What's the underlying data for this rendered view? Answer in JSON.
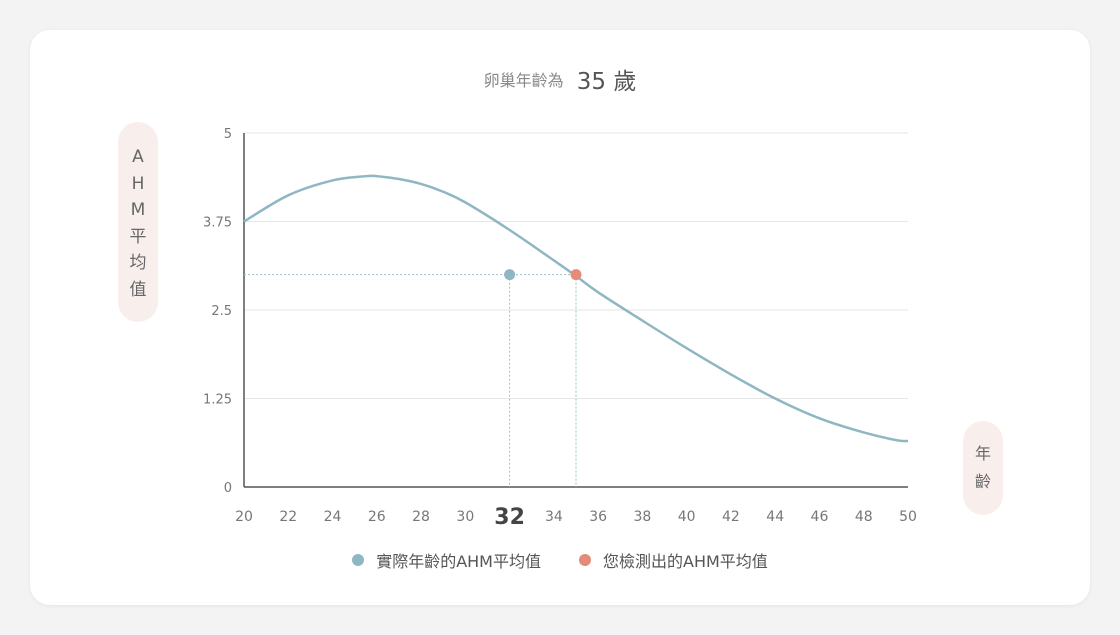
{
  "header": {
    "label": "卵巢年齡為",
    "value": "35 歲"
  },
  "axis_pills": {
    "y_chars": [
      "A",
      "H",
      "M",
      "平",
      "均",
      "值"
    ],
    "x_chars": [
      "年",
      "齡"
    ]
  },
  "legend": {
    "actual": "實際年齡的AHM平均值",
    "measured": "您檢測出的AHM平均值"
  },
  "colors": {
    "curve": "#8fb7c3",
    "actual_dot": "#8fb7c3",
    "measured_dot": "#e48c78",
    "grid": "#e6e6e6",
    "axis": "#555555"
  },
  "chart_data": {
    "type": "line",
    "xlim": [
      20,
      50
    ],
    "ylim": [
      0,
      5
    ],
    "x_ticks": [
      "20",
      "22",
      "24",
      "26",
      "28",
      "30",
      "32",
      "34",
      "36",
      "38",
      "40",
      "42",
      "44",
      "46",
      "48",
      "50"
    ],
    "y_ticks": [
      "0",
      "1.25",
      "2.5",
      "3.75",
      "5"
    ],
    "highlight_tick": "32",
    "x": [
      20,
      22,
      24,
      25.5,
      26,
      27,
      28,
      29,
      30,
      32,
      34,
      35,
      36,
      38,
      40,
      42,
      44,
      46,
      48,
      49.5,
      50
    ],
    "y": [
      3.75,
      4.12,
      4.33,
      4.39,
      4.39,
      4.35,
      4.28,
      4.17,
      4.02,
      3.63,
      3.2,
      2.98,
      2.75,
      2.35,
      1.96,
      1.59,
      1.25,
      0.97,
      0.77,
      0.66,
      0.65
    ],
    "points": [
      {
        "role": "actual",
        "x": 32,
        "y": 3.0
      },
      {
        "role": "measured",
        "x": 35,
        "y": 3.0
      }
    ]
  }
}
